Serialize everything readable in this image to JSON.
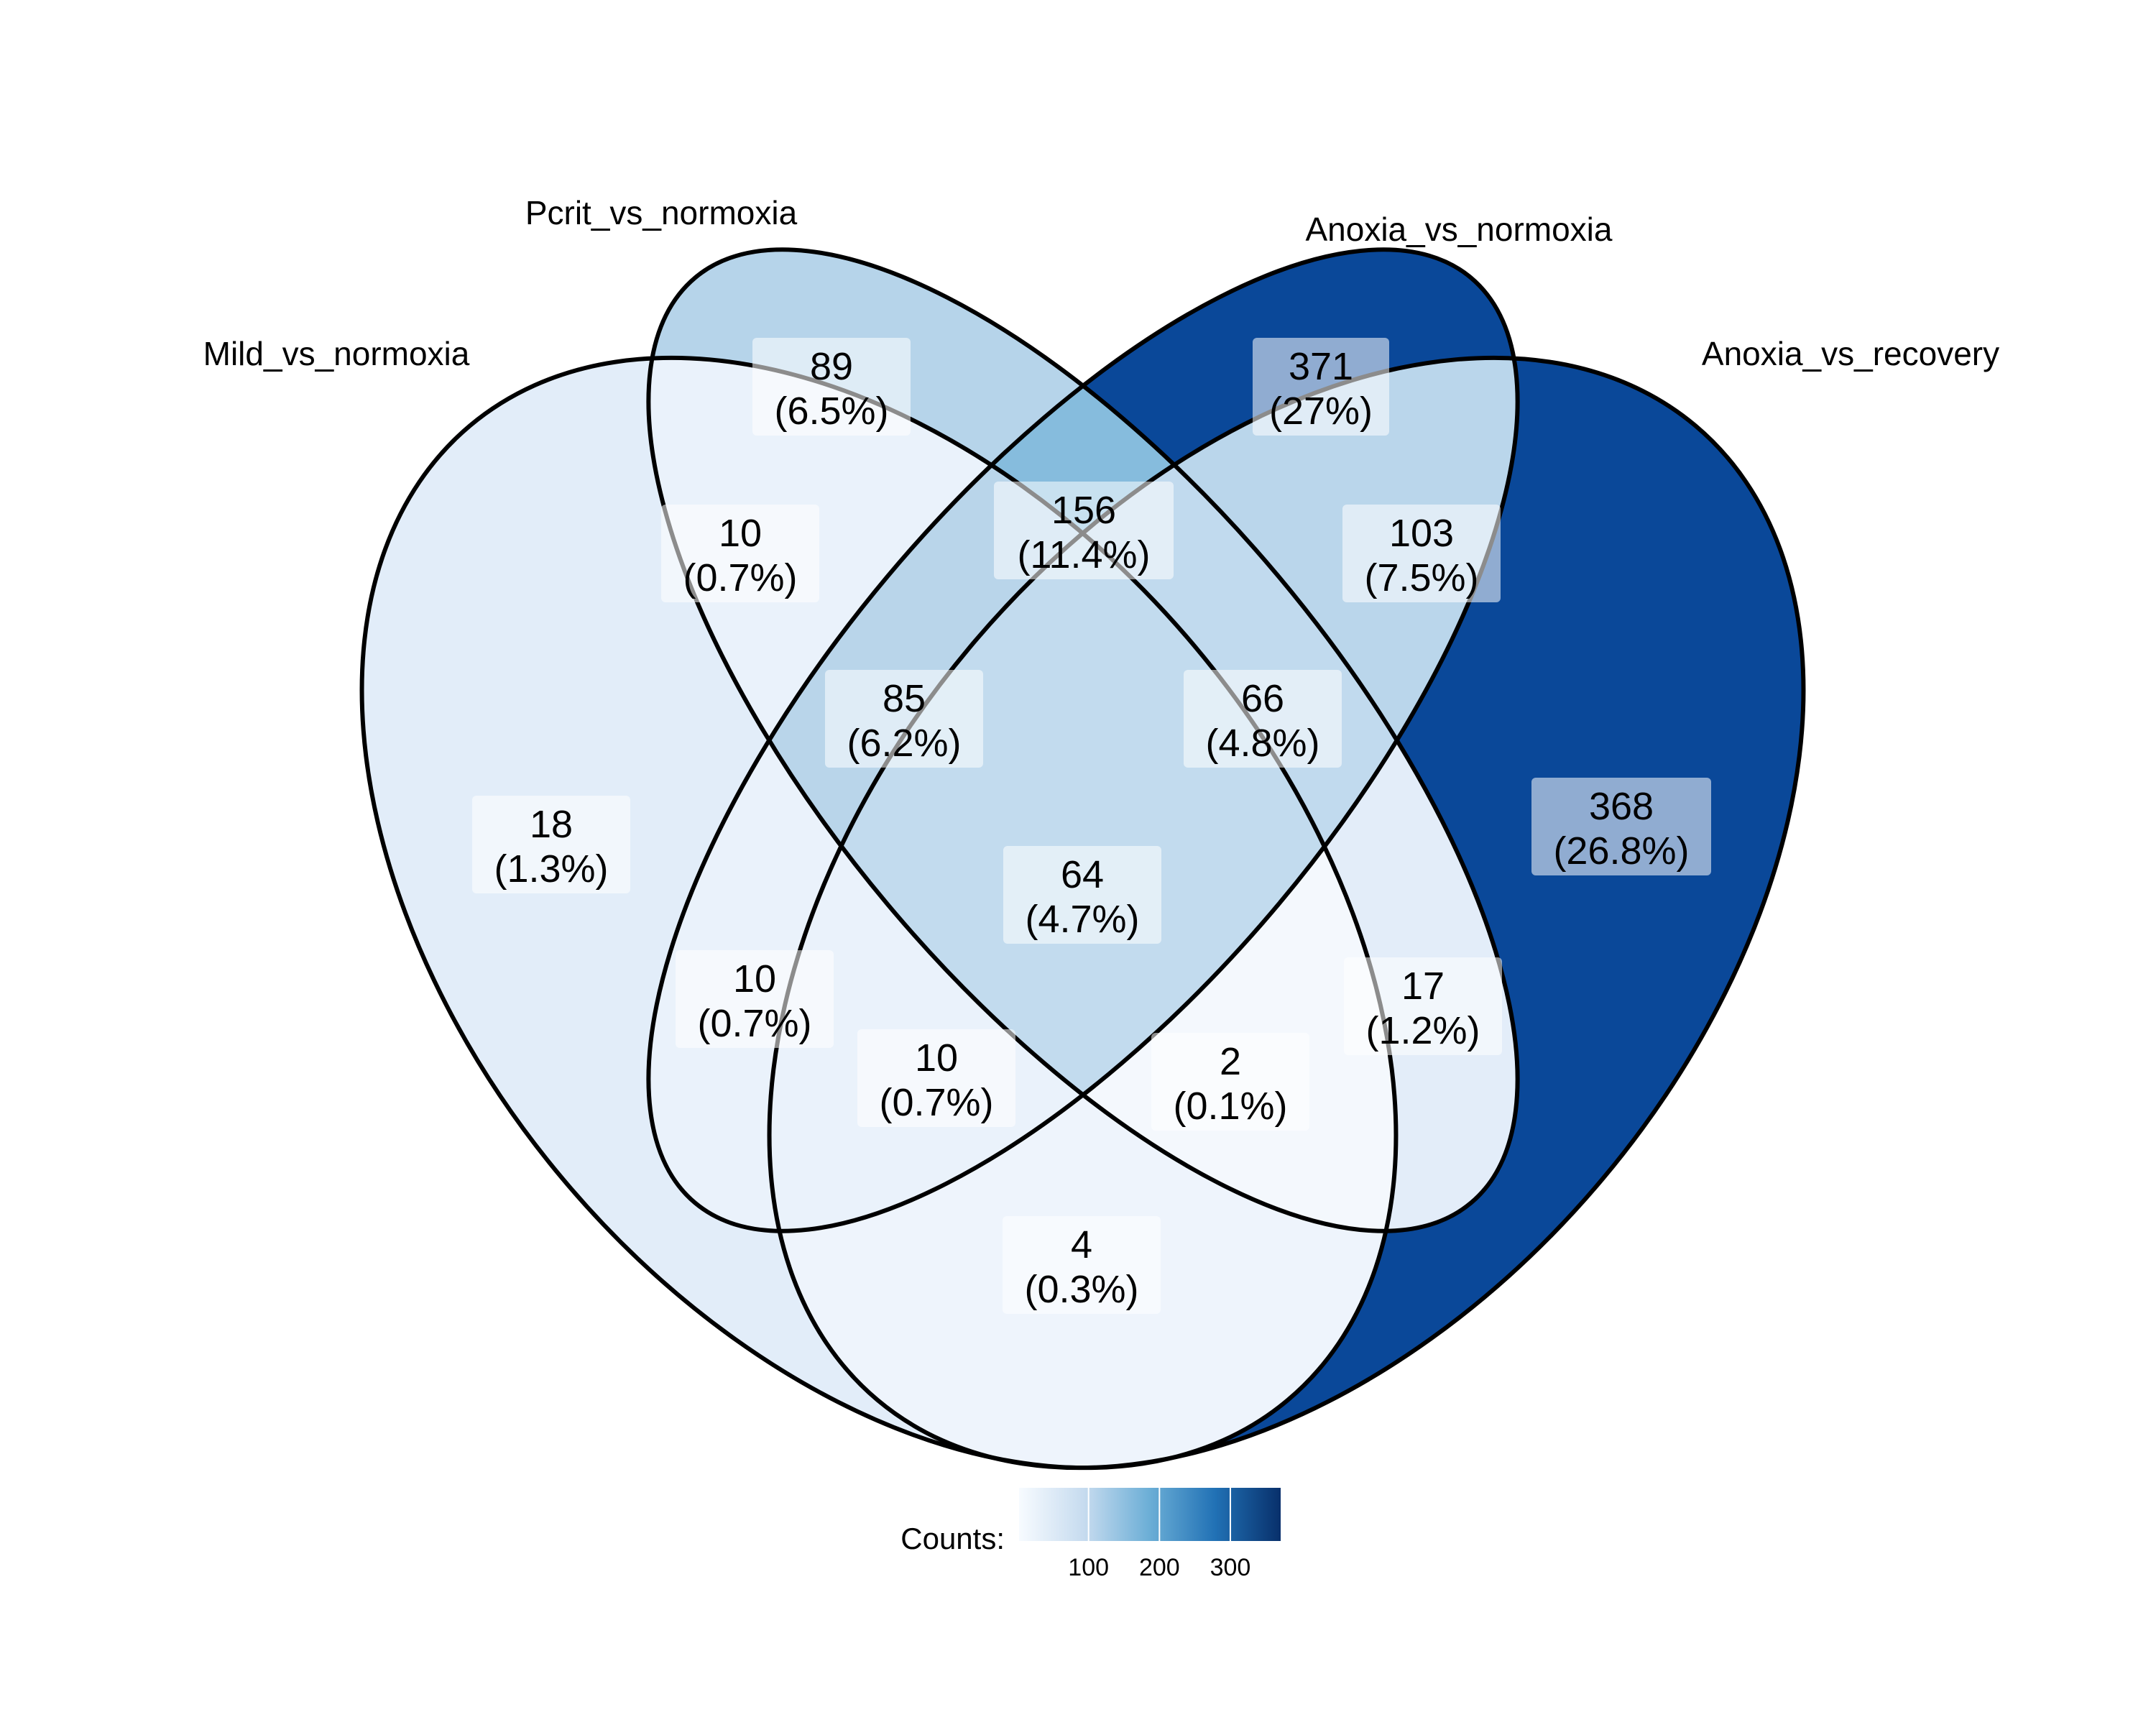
{
  "diagram": {
    "type": "venn-4-ellipse",
    "sets": [
      {
        "id": "A",
        "name": "Mild_vs_normoxia"
      },
      {
        "id": "B",
        "name": "Pcrit_vs_normoxia"
      },
      {
        "id": "C",
        "name": "Anoxia_vs_normoxia"
      },
      {
        "id": "D",
        "name": "Anoxia_vs_recovery"
      }
    ],
    "regions": [
      {
        "sets": [
          "A"
        ],
        "count": "18",
        "percent": "(1.3%)",
        "value": 18
      },
      {
        "sets": [
          "B"
        ],
        "count": "89",
        "percent": "(6.5%)",
        "value": 89
      },
      {
        "sets": [
          "C"
        ],
        "count": "371",
        "percent": "(27%)",
        "value": 371
      },
      {
        "sets": [
          "D"
        ],
        "count": "368",
        "percent": "(26.8%)",
        "value": 368
      },
      {
        "sets": [
          "A",
          "B"
        ],
        "count": "10",
        "percent": "(0.7%)",
        "value": 10
      },
      {
        "sets": [
          "B",
          "C"
        ],
        "count": "156",
        "percent": "(11.4%)",
        "value": 156
      },
      {
        "sets": [
          "C",
          "D"
        ],
        "count": "103",
        "percent": "(7.5%)",
        "value": 103
      },
      {
        "sets": [
          "A",
          "B",
          "C"
        ],
        "count": "85",
        "percent": "(6.2%)",
        "value": 85
      },
      {
        "sets": [
          "B",
          "C",
          "D"
        ],
        "count": "66",
        "percent": "(4.8%)",
        "value": 66
      },
      {
        "sets": [
          "A",
          "B",
          "C",
          "D"
        ],
        "count": "64",
        "percent": "(4.7%)",
        "value": 64
      },
      {
        "sets": [
          "A",
          "C"
        ],
        "count": "10",
        "percent": "(0.7%)",
        "value": 10
      },
      {
        "sets": [
          "B",
          "D"
        ],
        "count": "17",
        "percent": "(1.2%)",
        "value": 17
      },
      {
        "sets": [
          "A",
          "C",
          "D"
        ],
        "count": "10",
        "percent": "(0.7%)",
        "value": 10
      },
      {
        "sets": [
          "A",
          "B",
          "D"
        ],
        "count": "2",
        "percent": "(0.1%)",
        "value": 2
      },
      {
        "sets": [
          "A",
          "D"
        ],
        "count": "4",
        "percent": "(0.3%)",
        "value": 4
      }
    ],
    "legend": {
      "title": "Counts:",
      "ticks": [
        "100",
        "200",
        "300"
      ],
      "range": [
        2,
        371
      ],
      "colors": [
        "#f7fbff",
        "#c6dbef",
        "#6baed6",
        "#2171b5",
        "#08306b"
      ]
    },
    "fill_colors": {
      "A": "#e2edf9",
      "B": "#b6d4ea",
      "C": "#0a4899",
      "D": "#0a4899",
      "AB": "#eaf2fb",
      "BC": "#86bcdd",
      "CD": "#bad6eb",
      "ABC": "#b9d5ea",
      "BCD": "#c1daee",
      "ABCD": "#c2dbee",
      "AC": "#eaf2fb",
      "BD": "#e3edf9",
      "ACD": "#eaf2fb",
      "ABD": "#f4f8fd",
      "AD": "#eef4fc"
    }
  }
}
